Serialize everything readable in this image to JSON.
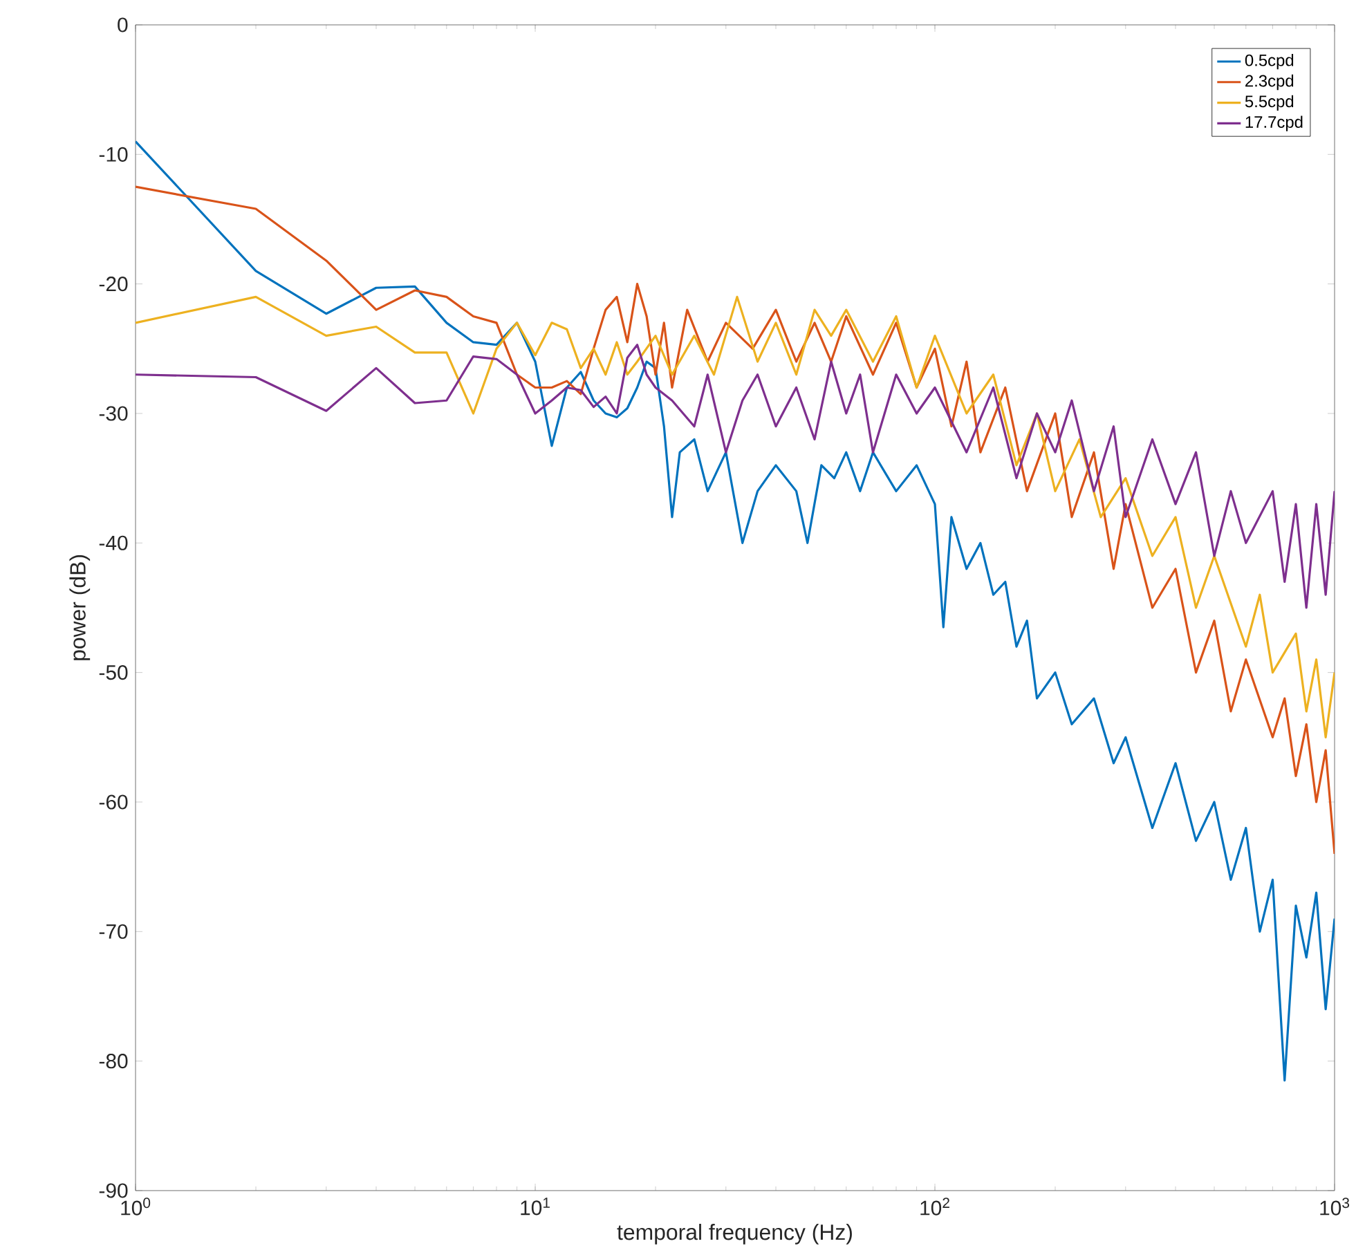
{
  "chart_data": {
    "type": "line",
    "xlabel": "temporal frequency (Hz)",
    "ylabel": "power (dB)",
    "log": "x",
    "xlim": [
      1,
      1000
    ],
    "ylim": [
      -90,
      0
    ],
    "xticks": [
      {
        "value": 1,
        "label": "10$^{0}$"
      },
      {
        "value": 10,
        "label": "10$^{1}$"
      },
      {
        "value": 100,
        "label": "10$^{2}$"
      },
      {
        "value": 1000,
        "label": "10$^{3}$"
      }
    ],
    "yticks": [
      -90,
      -80,
      -70,
      -60,
      -50,
      -40,
      -30,
      -20,
      -10,
      0
    ],
    "grid": false,
    "legend": "top right",
    "marker": "none",
    "line_style": "solid",
    "series": [
      {
        "name": "0.5cpd",
        "color": "#0072bd",
        "x": [
          1,
          2,
          3,
          4,
          5,
          6,
          7,
          8,
          9,
          10,
          11,
          12,
          13,
          14,
          15,
          16,
          17,
          18,
          19,
          20,
          21,
          22,
          23,
          25,
          27,
          30,
          33,
          36,
          40,
          45,
          48,
          52,
          56,
          60,
          65,
          70,
          80,
          90,
          100,
          105,
          110,
          120,
          130,
          140,
          150,
          160,
          170,
          180,
          200,
          220,
          250,
          280,
          300,
          350,
          400,
          450,
          500,
          550,
          600,
          650,
          700,
          750,
          800,
          850,
          900,
          950,
          1000
        ],
        "values": [
          -9,
          -19,
          -22.3,
          -20.3,
          -20.2,
          -23,
          -24.5,
          -24.7,
          -23,
          -26,
          -32.5,
          -28,
          -26.8,
          -29,
          -30,
          -30.3,
          -29.6,
          -28,
          -26,
          -26.5,
          -31,
          -38,
          -33,
          -32,
          -36,
          -33,
          -40,
          -36,
          -34,
          -36,
          -40,
          -34,
          -35,
          -33,
          -36,
          -33,
          -36,
          -34,
          -37,
          -46.5,
          -38,
          -42,
          -40,
          -44,
          -43,
          -48,
          -46,
          -52,
          -50,
          -54,
          -52,
          -57,
          -55,
          -62,
          -57,
          -63,
          -60,
          -66,
          -62,
          -70,
          -66,
          -81.5,
          -68,
          -72,
          -67,
          -76,
          -69
        ]
      },
      {
        "name": "2.3cpd",
        "color": "#d95319",
        "x": [
          1,
          2,
          3,
          4,
          5,
          6,
          7,
          8,
          9,
          10,
          11,
          12,
          13,
          14,
          15,
          16,
          17,
          18,
          19,
          20,
          21,
          22,
          24,
          27,
          30,
          35,
          40,
          45,
          50,
          55,
          60,
          70,
          80,
          90,
          100,
          110,
          120,
          130,
          150,
          170,
          200,
          220,
          250,
          280,
          300,
          350,
          400,
          450,
          500,
          550,
          600,
          700,
          750,
          800,
          850,
          900,
          950,
          1000
        ],
        "values": [
          -12.5,
          -14.2,
          -18.2,
          -22,
          -20.5,
          -21,
          -22.5,
          -23,
          -27,
          -28,
          -28,
          -27.5,
          -28.5,
          -25,
          -22,
          -21,
          -24.5,
          -20,
          -22.5,
          -27,
          -23,
          -28,
          -22,
          -26,
          -23,
          -25,
          -22,
          -26,
          -23,
          -26,
          -22.5,
          -27,
          -23,
          -28,
          -25,
          -31,
          -26,
          -33,
          -28,
          -36,
          -30,
          -38,
          -33,
          -42,
          -37,
          -45,
          -42,
          -50,
          -46,
          -53,
          -49,
          -55,
          -52,
          -58,
          -54,
          -60,
          -56,
          -64
        ]
      },
      {
        "name": "5.5cpd",
        "color": "#edb120",
        "x": [
          1,
          2,
          3,
          4,
          5,
          6,
          7,
          8,
          9,
          10,
          11,
          12,
          13,
          14,
          15,
          16,
          17,
          18,
          20,
          22,
          25,
          28,
          32,
          36,
          40,
          45,
          50,
          55,
          60,
          70,
          80,
          90,
          100,
          120,
          140,
          160,
          180,
          200,
          230,
          260,
          300,
          350,
          400,
          450,
          500,
          600,
          650,
          700,
          800,
          850,
          900,
          950,
          1000
        ],
        "values": [
          -23,
          -21,
          -24,
          -23.3,
          -25.3,
          -25.3,
          -30,
          -25,
          -23,
          -25.5,
          -23,
          -23.5,
          -26.5,
          -25,
          -27,
          -24.5,
          -27,
          -26,
          -24,
          -27,
          -24,
          -27,
          -21,
          -26,
          -23,
          -27,
          -22,
          -24,
          -22,
          -26,
          -22.5,
          -28,
          -24,
          -30,
          -27,
          -34,
          -30,
          -36,
          -32,
          -38,
          -35,
          -41,
          -38,
          -45,
          -41,
          -48,
          -44,
          -50,
          -47,
          -53,
          -49,
          -55,
          -50
        ]
      },
      {
        "name": "17.7cpd",
        "color": "#7e2f8e",
        "x": [
          1,
          2,
          3,
          4,
          5,
          6,
          7,
          8,
          9,
          10,
          11,
          12,
          13,
          14,
          15,
          16,
          17,
          18,
          19,
          20,
          22,
          25,
          27,
          30,
          33,
          36,
          40,
          45,
          50,
          55,
          60,
          65,
          70,
          80,
          90,
          100,
          120,
          140,
          160,
          180,
          200,
          220,
          250,
          280,
          300,
          350,
          400,
          450,
          500,
          550,
          600,
          700,
          750,
          800,
          850,
          900,
          950,
          1000
        ],
        "values": [
          -27,
          -27.2,
          -29.8,
          -26.5,
          -29.2,
          -29,
          -25.6,
          -25.8,
          -27,
          -30,
          -29,
          -28,
          -28.2,
          -29.5,
          -28.7,
          -30,
          -25.7,
          -24.7,
          -27,
          -28,
          -29,
          -31,
          -27,
          -33,
          -29,
          -27,
          -31,
          -28,
          -32,
          -26,
          -30,
          -27,
          -33,
          -27,
          -30,
          -28,
          -33,
          -28,
          -35,
          -30,
          -33,
          -29,
          -36,
          -31,
          -38,
          -32,
          -37,
          -33,
          -41,
          -36,
          -40,
          -36,
          -43,
          -37,
          -45,
          -37,
          -44,
          -36
        ]
      }
    ]
  }
}
